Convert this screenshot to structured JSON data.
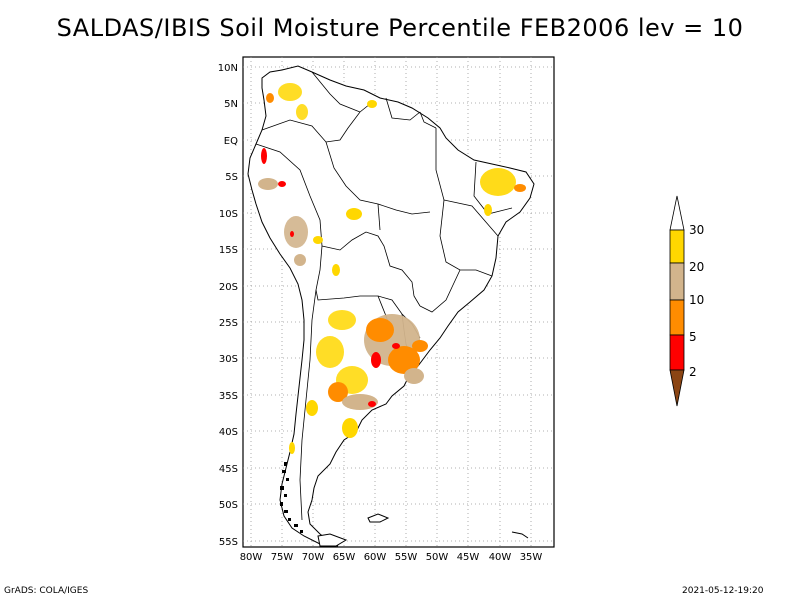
{
  "title": "SALDAS/IBIS Soil Moisture Percentile FEB2006 lev = 10",
  "lat_labels": [
    "10N",
    "5N",
    "EQ",
    "5S",
    "10S",
    "15S",
    "20S",
    "25S",
    "30S",
    "35S",
    "40S",
    "45S",
    "50S",
    "55S"
  ],
  "lon_labels": [
    "80W",
    "75W",
    "70W",
    "65W",
    "60W",
    "55W",
    "50W",
    "45W",
    "40W",
    "35W"
  ],
  "legend": {
    "labels": [
      "2",
      "5",
      "10",
      "20",
      "30"
    ],
    "colors": {
      "below_2": "#8b4513",
      "2_5": "#ff0000",
      "5_10": "#ff8c00",
      "10_20": "#d2b48c",
      "20_30": "#ffd700",
      "above_30": "#ffffff"
    }
  },
  "footer": {
    "left": "GrADS: COLA/IGES",
    "right": "2021-05-12-19:20"
  }
}
